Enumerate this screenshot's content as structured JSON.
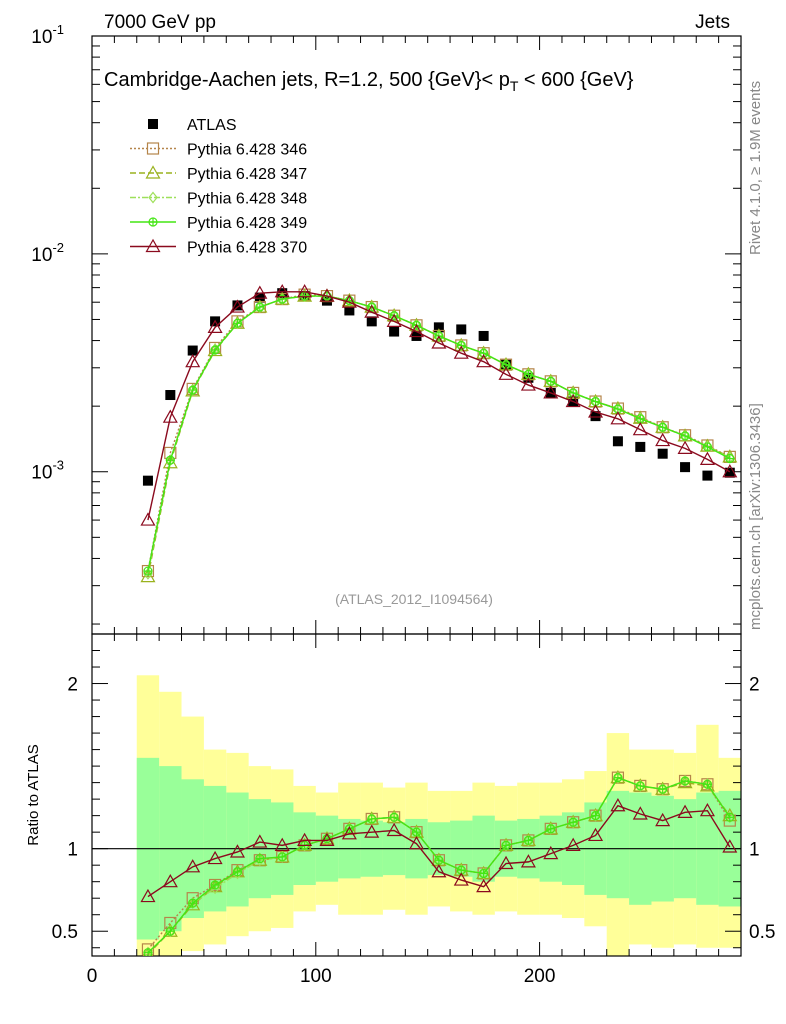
{
  "header": {
    "left": "7000 GeV pp",
    "right": "Jets",
    "title": "Cambridge-Aachen jets, R=1.2, 500 {GeV}< p",
    "title_sub": "T",
    "title_end": " < 600 {GeV}"
  },
  "side_labels": {
    "rivet": "Rivet 4.1.0, ≥ 1.9M events",
    "mcplots": "mcplots.cern.ch [arXiv:1306.3436]"
  },
  "reference": "(ATLAS_2012_I1094564)",
  "ratio_ylabel": "Ratio to ATLAS",
  "colors": {
    "data": "#000000",
    "p346": "#b5854a",
    "p347": "#9ab21e",
    "p348": "#9ee05a",
    "p349": "#44e614",
    "p370": "#8b0a1e",
    "band_inner": "#99ff99",
    "band_outer": "#ffff99"
  },
  "chart_data": {
    "type": "line",
    "xlim": [
      0,
      290
    ],
    "x_ticks": [
      "0",
      "100",
      "200"
    ],
    "main": {
      "yscale": "log",
      "ylim": [
        0.00018,
        0.1
      ],
      "y_ticks": [
        {
          "base": "10",
          "exp": "-1",
          "value": 0.1
        },
        {
          "base": "10",
          "exp": "-2",
          "value": 0.01
        },
        {
          "base": "10",
          "exp": "-3",
          "value": 0.001
        }
      ]
    },
    "ratio": {
      "ylim": [
        0.35,
        2.3
      ],
      "y_ticks": [
        "0.5",
        "1",
        "2"
      ],
      "y_tick_values": [
        0.5,
        1,
        2
      ]
    },
    "x": [
      25,
      35,
      45,
      55,
      65,
      75,
      85,
      95,
      105,
      115,
      125,
      135,
      145,
      155,
      165,
      175,
      185,
      195,
      205,
      215,
      225,
      235,
      245,
      255,
      265,
      275,
      285
    ],
    "bin_edges": [
      20,
      30,
      40,
      50,
      60,
      70,
      80,
      90,
      100,
      110,
      120,
      130,
      140,
      150,
      160,
      170,
      180,
      190,
      200,
      210,
      220,
      230,
      240,
      250,
      260,
      270,
      280,
      290
    ],
    "legend": [
      {
        "key": "data",
        "label": "ATLAS",
        "marker": "square-filled",
        "dash": ""
      },
      {
        "key": "p346",
        "label": "Pythia 6.428 346",
        "marker": "square",
        "dash": "2,2"
      },
      {
        "key": "p347",
        "label": "Pythia 6.428 347",
        "marker": "triangle",
        "dash": "6,3"
      },
      {
        "key": "p348",
        "label": "Pythia 6.428 348",
        "marker": "diamond",
        "dash": "6,2,2,2"
      },
      {
        "key": "p349",
        "label": "Pythia 6.428 349",
        "marker": "cross",
        "dash": ""
      },
      {
        "key": "p370",
        "label": "Pythia 6.428 370",
        "marker": "triangle",
        "dash": ""
      }
    ],
    "series": [
      {
        "key": "data",
        "name": "ATLAS",
        "values": [
          0.00091,
          0.00225,
          0.0036,
          0.0049,
          0.0058,
          0.0063,
          0.0066,
          0.0064,
          0.0061,
          0.0055,
          0.0049,
          0.0044,
          0.0042,
          0.0046,
          0.0045,
          0.0042,
          0.0031,
          0.0027,
          0.0023,
          0.0021,
          0.0018,
          0.00138,
          0.0013,
          0.00121,
          0.00105,
          0.00096,
          0.00099
        ]
      },
      {
        "key": "p346",
        "name": "Pythia 6.428 346",
        "values": [
          0.00035,
          0.00122,
          0.0024,
          0.0037,
          0.0049,
          0.0057,
          0.0062,
          0.0065,
          0.0064,
          0.0061,
          0.0057,
          0.0052,
          0.0047,
          0.0042,
          0.0038,
          0.0035,
          0.0031,
          0.0028,
          0.0026,
          0.0023,
          0.0021,
          0.00195,
          0.00178,
          0.0016,
          0.00147,
          0.00132,
          0.00117
        ]
      },
      {
        "key": "p347",
        "name": "Pythia 6.428 347",
        "values": [
          0.00033,
          0.0011,
          0.00235,
          0.0036,
          0.0048,
          0.0057,
          0.0062,
          0.0064,
          0.0064,
          0.0061,
          0.0057,
          0.0052,
          0.0047,
          0.0042,
          0.0038,
          0.0035,
          0.0031,
          0.0028,
          0.0026,
          0.0023,
          0.0021,
          0.00195,
          0.00176,
          0.0016,
          0.00146,
          0.00131,
          0.00117
        ]
      },
      {
        "key": "p348",
        "name": "Pythia 6.428 348",
        "values": [
          0.00034,
          0.00113,
          0.00237,
          0.00365,
          0.0048,
          0.0057,
          0.0062,
          0.0064,
          0.0064,
          0.0061,
          0.0057,
          0.0052,
          0.0047,
          0.0042,
          0.0038,
          0.0035,
          0.0031,
          0.0028,
          0.0026,
          0.0023,
          0.0021,
          0.00194,
          0.00176,
          0.0016,
          0.00146,
          0.00131,
          0.00116
        ]
      },
      {
        "key": "p349",
        "name": "Pythia 6.428 349",
        "values": [
          0.00035,
          0.00113,
          0.00237,
          0.00362,
          0.0048,
          0.0057,
          0.0062,
          0.0064,
          0.0064,
          0.0061,
          0.0057,
          0.0052,
          0.0047,
          0.0042,
          0.0038,
          0.0035,
          0.0031,
          0.0028,
          0.0026,
          0.0023,
          0.0021,
          0.00194,
          0.00175,
          0.0016,
          0.00146,
          0.0013,
          0.00115
        ]
      },
      {
        "key": "p370",
        "name": "Pythia 6.428 370",
        "values": [
          0.0006,
          0.00178,
          0.0032,
          0.0046,
          0.0057,
          0.0066,
          0.0067,
          0.0067,
          0.0064,
          0.006,
          0.0054,
          0.0049,
          0.0044,
          0.0039,
          0.0035,
          0.0032,
          0.0028,
          0.0025,
          0.0023,
          0.0021,
          0.00188,
          0.00175,
          0.00156,
          0.00139,
          0.00128,
          0.00114,
          0.001
        ]
      }
    ],
    "ratio_series": [
      {
        "key": "p346",
        "values": [
          0.39,
          0.55,
          0.7,
          0.78,
          0.87,
          0.93,
          0.95,
          1.02,
          1.06,
          1.12,
          1.18,
          1.19,
          1.1,
          0.93,
          0.87,
          0.85,
          1.02,
          1.05,
          1.12,
          1.16,
          1.2,
          1.43,
          1.38,
          1.36,
          1.41,
          1.39,
          1.17
        ]
      },
      {
        "key": "p347",
        "values": [
          0.36,
          0.5,
          0.66,
          0.77,
          0.86,
          0.93,
          0.95,
          1.02,
          1.06,
          1.12,
          1.18,
          1.19,
          1.1,
          0.93,
          0.87,
          0.85,
          1.02,
          1.05,
          1.12,
          1.16,
          1.2,
          1.43,
          1.38,
          1.36,
          1.4,
          1.38,
          1.2
        ]
      },
      {
        "key": "p348",
        "values": [
          0.37,
          0.5,
          0.67,
          0.76,
          0.85,
          0.93,
          0.95,
          1.02,
          1.06,
          1.12,
          1.18,
          1.19,
          1.1,
          0.93,
          0.87,
          0.85,
          1.02,
          1.05,
          1.12,
          1.16,
          1.2,
          1.43,
          1.38,
          1.36,
          1.41,
          1.39,
          1.19
        ]
      },
      {
        "key": "p349",
        "values": [
          0.37,
          0.5,
          0.67,
          0.78,
          0.86,
          0.94,
          0.95,
          1.02,
          1.06,
          1.12,
          1.18,
          1.19,
          1.1,
          0.93,
          0.87,
          0.85,
          1.02,
          1.05,
          1.12,
          1.16,
          1.2,
          1.43,
          1.38,
          1.36,
          1.41,
          1.39,
          1.19
        ]
      },
      {
        "key": "p370",
        "values": [
          0.71,
          0.8,
          0.89,
          0.94,
          0.98,
          1.04,
          1.02,
          1.05,
          1.05,
          1.09,
          1.1,
          1.11,
          1.03,
          0.86,
          0.81,
          0.77,
          0.91,
          0.92,
          0.97,
          1.02,
          1.08,
          1.26,
          1.21,
          1.17,
          1.22,
          1.23,
          1.01
        ]
      }
    ],
    "band_inner": [
      [
        0.45,
        1.55
      ],
      [
        0.5,
        1.5
      ],
      [
        0.58,
        1.42
      ],
      [
        0.62,
        1.38
      ],
      [
        0.65,
        1.34
      ],
      [
        0.7,
        1.3
      ],
      [
        0.72,
        1.28
      ],
      [
        0.78,
        1.22
      ],
      [
        0.8,
        1.2
      ],
      [
        0.82,
        1.18
      ],
      [
        0.83,
        1.17
      ],
      [
        0.84,
        1.16
      ],
      [
        0.82,
        1.18
      ],
      [
        0.84,
        1.16
      ],
      [
        0.83,
        1.17
      ],
      [
        0.8,
        1.2
      ],
      [
        0.83,
        1.17
      ],
      [
        0.82,
        1.18
      ],
      [
        0.8,
        1.2
      ],
      [
        0.78,
        1.22
      ],
      [
        0.72,
        1.28
      ],
      [
        0.7,
        1.35
      ],
      [
        0.66,
        1.34
      ],
      [
        0.68,
        1.32
      ],
      [
        0.7,
        1.3
      ],
      [
        0.66,
        1.34
      ],
      [
        0.65,
        1.35
      ]
    ],
    "band_outer": [
      [
        0.3,
        2.05
      ],
      [
        0.3,
        1.95
      ],
      [
        0.38,
        1.8
      ],
      [
        0.42,
        1.6
      ],
      [
        0.47,
        1.58
      ],
      [
        0.5,
        1.5
      ],
      [
        0.52,
        1.48
      ],
      [
        0.62,
        1.38
      ],
      [
        0.66,
        1.34
      ],
      [
        0.6,
        1.4
      ],
      [
        0.6,
        1.4
      ],
      [
        0.63,
        1.37
      ],
      [
        0.6,
        1.4
      ],
      [
        0.65,
        1.35
      ],
      [
        0.62,
        1.35
      ],
      [
        0.6,
        1.4
      ],
      [
        0.62,
        1.38
      ],
      [
        0.6,
        1.4
      ],
      [
        0.6,
        1.4
      ],
      [
        0.58,
        1.42
      ],
      [
        0.53,
        1.47
      ],
      [
        0.3,
        1.7
      ],
      [
        0.42,
        1.6
      ],
      [
        0.4,
        1.6
      ],
      [
        0.42,
        1.58
      ],
      [
        0.4,
        1.75
      ],
      [
        0.4,
        1.55
      ]
    ]
  }
}
